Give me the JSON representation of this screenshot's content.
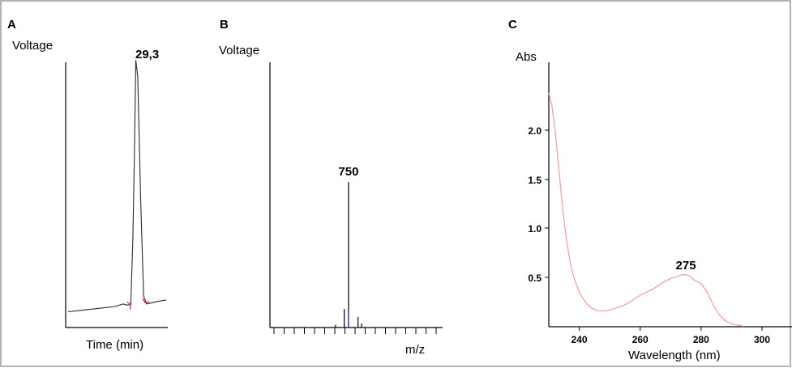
{
  "colors": {
    "frame": "#9a9a9a",
    "axis": "#000000",
    "trace": "#2a2a2a",
    "baseline_marks": "#e02020",
    "minor_peak": "#3a3ad0",
    "uv_trace": "#f4a0a0"
  },
  "chart_data": [
    {
      "panel": "A",
      "type": "line",
      "ylabel": "Voltage",
      "xlabel": "Time (min)",
      "peak_label": "29,3",
      "ticks": false,
      "grid": false,
      "x": [
        0.0,
        0.12,
        0.24,
        0.36,
        0.48,
        0.56,
        0.61,
        0.64,
        0.66,
        0.675,
        0.69,
        0.71,
        0.74,
        0.77,
        0.8,
        0.86,
        0.92,
        1.0
      ],
      "y": [
        0.02,
        0.025,
        0.03,
        0.035,
        0.04,
        0.05,
        0.045,
        0.05,
        0.3,
        0.6,
        0.98,
        0.92,
        0.45,
        0.08,
        0.05,
        0.055,
        0.06,
        0.065
      ]
    },
    {
      "panel": "B",
      "type": "bar",
      "ylabel": "Voltage",
      "xlabel": "m/z",
      "peak_label": "750",
      "ticks": false,
      "grid": false,
      "x": [
        0.38,
        0.43,
        0.455,
        0.51,
        0.53
      ],
      "y": [
        0.01,
        0.07,
        0.55,
        0.04,
        0.015
      ]
    },
    {
      "panel": "C",
      "type": "line",
      "ylabel": "Abs",
      "xlabel": "Wavelength (nm)",
      "peak_label": "275",
      "xlim": [
        230,
        304
      ],
      "ylim": [
        0,
        2.7
      ],
      "xticks": [
        240,
        260,
        280,
        300
      ],
      "yticks": [
        0.5,
        1.0,
        1.5,
        2.0
      ],
      "xtick_labels": [
        "240",
        "260",
        "280",
        "300"
      ],
      "ytick_labels": [
        "0.5",
        "1.0",
        "1.5",
        "2.0"
      ],
      "grid": false,
      "x": [
        230,
        231,
        232,
        233,
        234,
        235,
        236,
        237,
        238,
        240,
        242,
        244,
        246,
        248,
        250,
        252,
        254,
        256,
        258,
        260,
        262,
        264,
        266,
        268,
        270,
        272,
        274,
        275,
        276,
        278,
        280,
        282,
        284,
        286,
        288,
        290,
        292,
        294
      ],
      "y": [
        2.38,
        2.25,
        2.02,
        1.7,
        1.38,
        1.08,
        0.85,
        0.66,
        0.52,
        0.35,
        0.25,
        0.19,
        0.165,
        0.16,
        0.17,
        0.19,
        0.21,
        0.24,
        0.28,
        0.32,
        0.35,
        0.38,
        0.42,
        0.46,
        0.49,
        0.51,
        0.53,
        0.53,
        0.52,
        0.47,
        0.44,
        0.35,
        0.22,
        0.12,
        0.06,
        0.03,
        0.015,
        0.005
      ]
    }
  ]
}
